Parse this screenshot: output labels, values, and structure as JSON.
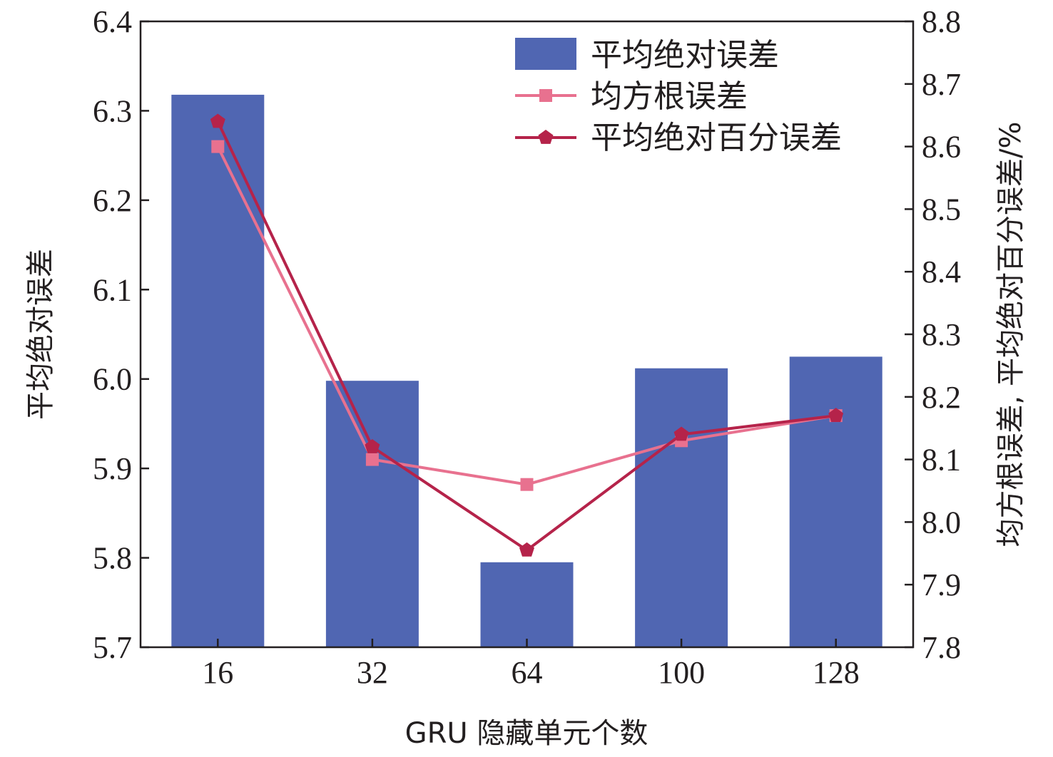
{
  "chart_data": {
    "type": "bar",
    "categories": [
      "16",
      "32",
      "64",
      "100",
      "128"
    ],
    "xlabel": "GRU 隐藏单元个数",
    "ylabel_left": "平均绝对误差",
    "ylabel_right": "均方根误差, 平均绝对百分误差/%",
    "ylim_left": [
      5.7,
      6.4
    ],
    "ylim_right": [
      7.8,
      8.8
    ],
    "yticks_left": [
      "5.7",
      "5.8",
      "5.9",
      "6.0",
      "6.1",
      "6.2",
      "6.3",
      "6.4"
    ],
    "yticks_right": [
      "7.8",
      "7.9",
      "8.0",
      "8.1",
      "8.2",
      "8.3",
      "8.4",
      "8.5",
      "8.6",
      "8.7",
      "8.8"
    ],
    "grid": false,
    "legend_position": "top-right",
    "series": [
      {
        "name": "平均绝对误差",
        "kind": "bar",
        "axis": "left",
        "color": "#5066b2",
        "values": [
          6.318,
          5.998,
          5.795,
          6.012,
          6.025
        ]
      },
      {
        "name": "均方根误差",
        "kind": "line",
        "axis": "right",
        "marker": "square",
        "color": "#e8718f",
        "values": [
          8.6,
          8.1,
          8.06,
          8.13,
          8.17
        ]
      },
      {
        "name": "平均绝对百分误差",
        "kind": "line",
        "axis": "right",
        "marker": "pentagon",
        "color": "#b5234a",
        "values": [
          8.64,
          8.12,
          7.955,
          8.14,
          8.17
        ]
      }
    ]
  }
}
